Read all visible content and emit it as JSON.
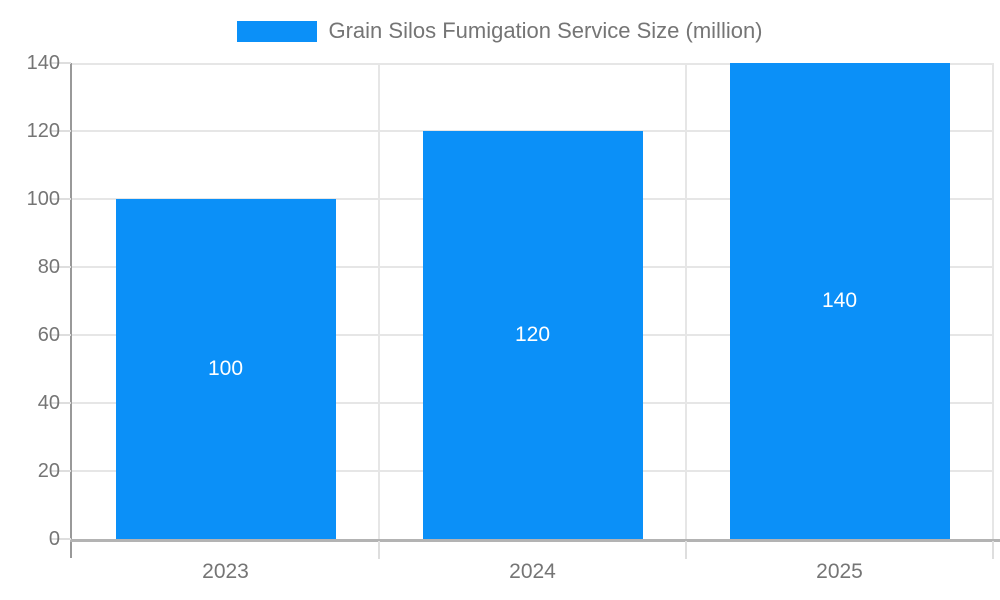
{
  "legend": {
    "label": "Grain Silos Fumigation Service Size (million)"
  },
  "chart_data": {
    "type": "bar",
    "title": "Grain Silos Fumigation Service Size (million)",
    "categories": [
      "2023",
      "2024",
      "2025"
    ],
    "values": [
      100,
      120,
      140
    ],
    "value_labels": [
      "100",
      "120",
      "140"
    ],
    "series": [
      {
        "name": "Grain Silos Fumigation Service Size (million)",
        "values": [
          100,
          120,
          140
        ]
      }
    ],
    "xlabel": "",
    "ylabel": "",
    "ylim": [
      0,
      140
    ],
    "yticks": [
      0,
      20,
      40,
      60,
      80,
      100,
      120,
      140
    ],
    "grid": true,
    "legend_position": "top-center"
  },
  "colors": {
    "bar": "#0b90f8",
    "grid": "#e6e6e6",
    "tick": "#dedede",
    "axis_y": "#999999",
    "axis_x": "#b3b3b3",
    "text": "#757575",
    "value_label": "#ffffff",
    "background": "#ffffff"
  }
}
